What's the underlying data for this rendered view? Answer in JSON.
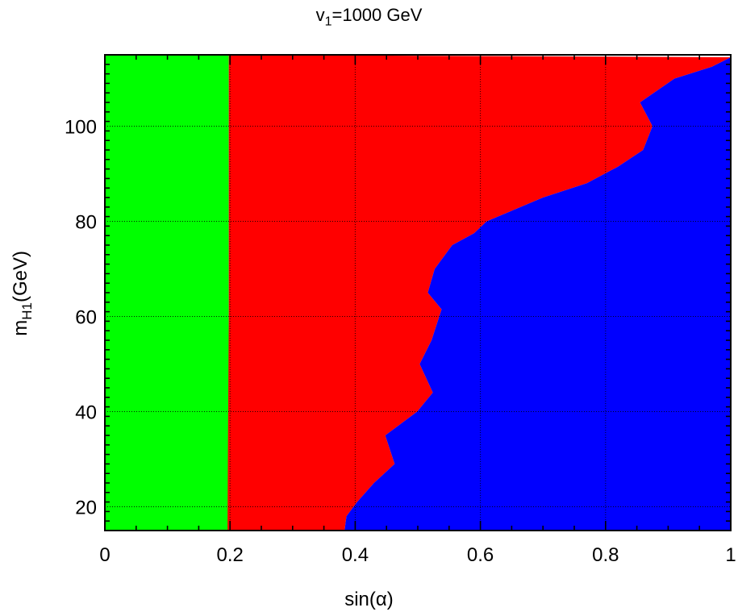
{
  "chart_data": {
    "type": "area",
    "title": {
      "var": "v",
      "sub": "1",
      "rest": "=1000 GeV"
    },
    "xlabel": "sin(α)",
    "ylabel": {
      "var": "m",
      "sub": "H1",
      "rest": "(GeV)"
    },
    "xlim": [
      0,
      1
    ],
    "ylim": [
      15,
      115
    ],
    "x_ticks": [
      0,
      0.2,
      0.4,
      0.6,
      0.8,
      1
    ],
    "x_tick_labels": [
      "0",
      "0.2",
      "0.4",
      "0.6",
      "0.8",
      "1"
    ],
    "y_ticks": [
      20,
      40,
      60,
      80,
      100
    ],
    "y_tick_labels": [
      "20",
      "40",
      "60",
      "80",
      "100"
    ],
    "grid": true,
    "regions": [
      {
        "region": "green",
        "color": "#00ff00"
      },
      {
        "region": "red",
        "color": "#ff0000"
      },
      {
        "region": "blue",
        "color": "#0000ff"
      }
    ],
    "green_red_boundary": [
      [
        0.198,
        115
      ],
      [
        0.198,
        60
      ],
      [
        0.197,
        40
      ],
      [
        0.196,
        15
      ]
    ],
    "red_blue_boundary": [
      [
        1.0,
        114.5
      ],
      [
        0.97,
        112.5
      ],
      [
        0.91,
        110
      ],
      [
        0.855,
        105
      ],
      [
        0.875,
        100
      ],
      [
        0.86,
        95
      ],
      [
        0.82,
        91.5
      ],
      [
        0.77,
        88
      ],
      [
        0.7,
        85
      ],
      [
        0.61,
        80
      ],
      [
        0.59,
        77.5
      ],
      [
        0.555,
        75
      ],
      [
        0.527,
        70
      ],
      [
        0.516,
        65
      ],
      [
        0.538,
        61.5
      ],
      [
        0.522,
        55
      ],
      [
        0.503,
        50
      ],
      [
        0.524,
        44
      ],
      [
        0.499,
        40
      ],
      [
        0.448,
        35
      ],
      [
        0.463,
        29
      ],
      [
        0.43,
        25
      ],
      [
        0.403,
        21
      ],
      [
        0.386,
        18
      ],
      [
        0.383,
        15
      ]
    ]
  }
}
